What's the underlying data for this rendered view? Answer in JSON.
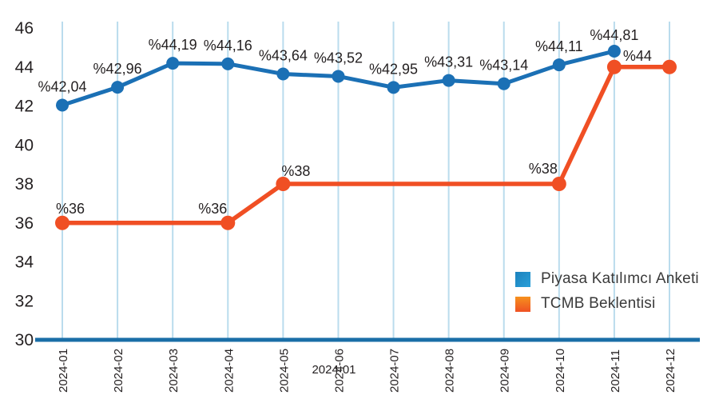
{
  "chart_data": {
    "type": "line",
    "title": "",
    "xlabel": "",
    "ylabel": "",
    "x_axis_extra_label": "2024-01",
    "x_categories": [
      "2024-01",
      "2024-02",
      "2024-03",
      "2024-04",
      "2024-05",
      "2024-06",
      "2024-07",
      "2024-08",
      "2024-09",
      "2024-10",
      "2024-11",
      "2024-12"
    ],
    "y_ticks": [
      30,
      32,
      34,
      36,
      38,
      40,
      42,
      44,
      46
    ],
    "ylim": [
      30,
      46
    ],
    "grid": "vertical-only",
    "legend_position": "inside-bottom-right",
    "series": [
      {
        "name": "Piyasa Katılımcı Anketi",
        "color": "#1b70b5",
        "points": [
          {
            "x": "2024-01",
            "y": 42.04,
            "label": "%42,04"
          },
          {
            "x": "2024-02",
            "y": 42.96,
            "label": "%42,96"
          },
          {
            "x": "2024-03",
            "y": 44.19,
            "label": "%44,19"
          },
          {
            "x": "2024-04",
            "y": 44.16,
            "label": "%44,16"
          },
          {
            "x": "2024-05",
            "y": 43.64,
            "label": "%43,64"
          },
          {
            "x": "2024-06",
            "y": 43.52,
            "label": "%43,52"
          },
          {
            "x": "2024-07",
            "y": 42.95,
            "label": "%42,95"
          },
          {
            "x": "2024-08",
            "y": 43.31,
            "label": "%43,31"
          },
          {
            "x": "2024-09",
            "y": 43.14,
            "label": "%43,14"
          },
          {
            "x": "2024-10",
            "y": 44.11,
            "label": "%44,11"
          },
          {
            "x": "2024-11",
            "y": 44.81,
            "label": "%44,81"
          }
        ]
      },
      {
        "name": "TCMB Beklentisi",
        "color": "#f04f24",
        "points": [
          {
            "x": "2024-01",
            "y": 36,
            "label": "%36"
          },
          {
            "x": "2024-04",
            "y": 36,
            "label": "%36"
          },
          {
            "x": "2024-05",
            "y": 38,
            "label": "%38"
          },
          {
            "x": "2024-10",
            "y": 38,
            "label": "%38"
          },
          {
            "x": "2024-11",
            "y": 44,
            "label": "%44"
          },
          {
            "x": "2024-12",
            "y": 44,
            "label": ""
          }
        ]
      }
    ]
  },
  "colors": {
    "grid_line": "#badced",
    "axis_baseline": "#1a6ea7",
    "tick_text": "#231f20",
    "point_label_text": "#231f20",
    "legend_blue": "#2094d1",
    "legend_orange": "#f26d21"
  }
}
